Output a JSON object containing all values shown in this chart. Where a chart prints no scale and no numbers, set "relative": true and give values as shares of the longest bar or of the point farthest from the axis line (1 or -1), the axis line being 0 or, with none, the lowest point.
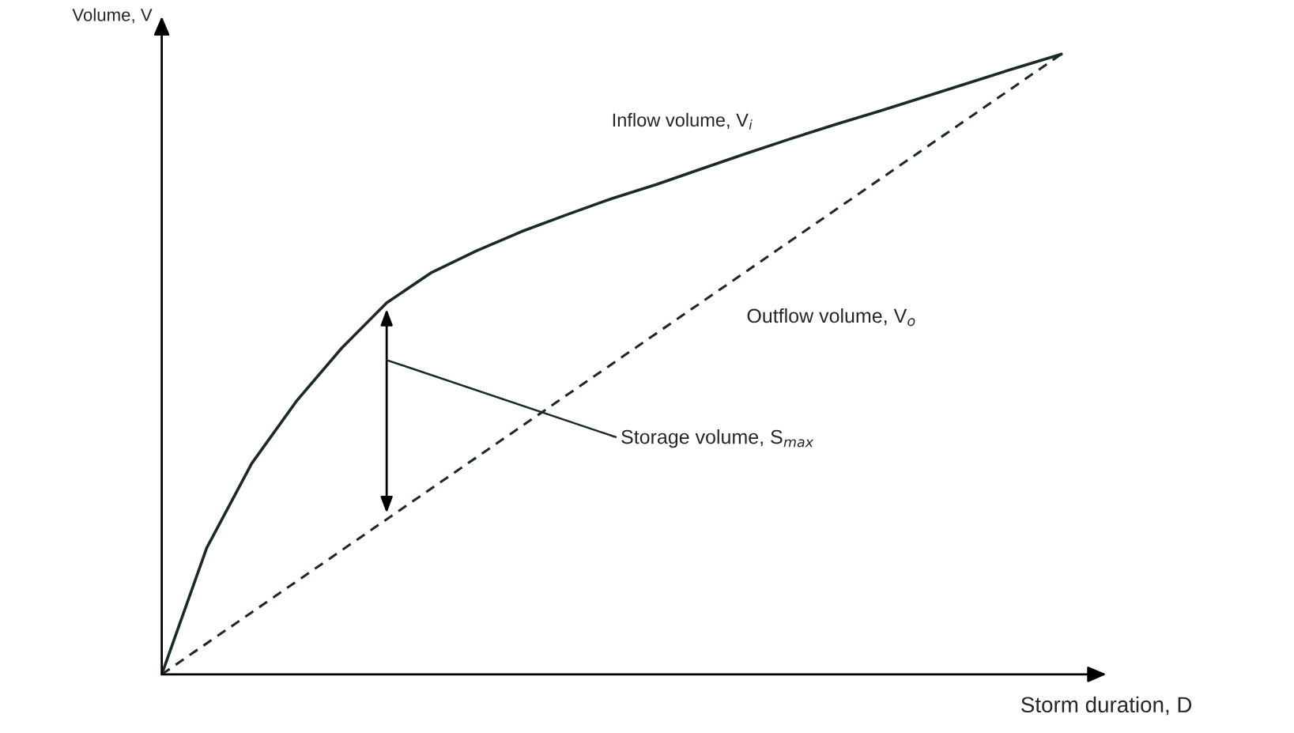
{
  "chart_data": {
    "type": "line",
    "relative": true,
    "xlabel": "Storm duration, D",
    "ylabel": "Volume, V",
    "categories": [
      null,
      null,
      null,
      null,
      null,
      null,
      null,
      null,
      null,
      null,
      null,
      null,
      null,
      null,
      null,
      null,
      null,
      null,
      null,
      null,
      null
    ],
    "series": [
      {
        "name": "Inflow volume, V$_{i}$",
        "color": "#1a2a2a",
        "line_style": "solid",
        "values": [
          0,
          0.204,
          0.34,
          0.441,
          0.526,
          0.599,
          0.648,
          0.683,
          0.714,
          0.741,
          0.767,
          0.79,
          0.815,
          0.84,
          0.864,
          0.887,
          0.909,
          0.932,
          0.955,
          0.978,
          1.0
        ]
      },
      {
        "name": "Outflow volume, V$_{o}$",
        "color": "#1a2a2a",
        "line_style": "dashed",
        "values": [
          0,
          0.05,
          0.1,
          0.15,
          0.2,
          0.25,
          0.3,
          0.35,
          0.4,
          0.45,
          0.5,
          0.55,
          0.6,
          0.65,
          0.7,
          0.75,
          0.8,
          0.85,
          0.9,
          0.95,
          1.0
        ]
      }
    ],
    "annotations": [
      "Storage volume, S$_{max}$"
    ],
    "legend": false,
    "grid": false,
    "marker": "none"
  }
}
